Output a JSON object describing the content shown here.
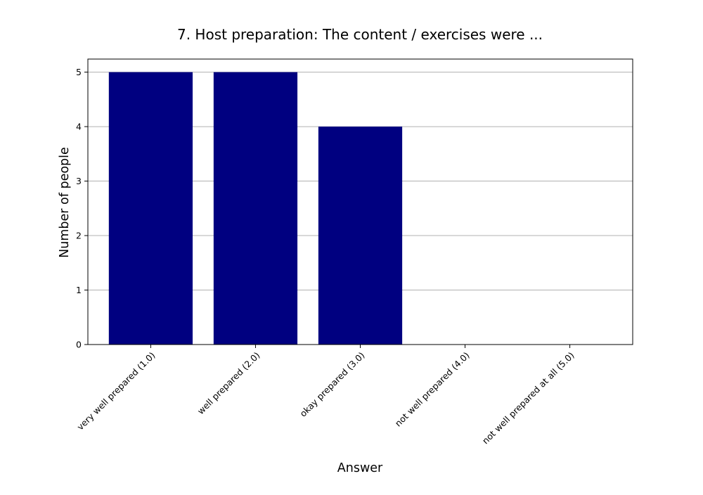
{
  "chart_data": {
    "type": "bar",
    "title": "7. Host preparation: The content / exercises were ...",
    "xlabel": "Answer",
    "ylabel": "Number of people",
    "categories": [
      "very well prepared (1.0)",
      "well prepared (2.0)",
      "okay prepared (3.0)",
      "not well prepared (4.0)",
      "not well prepared at all (5.0)"
    ],
    "values": [
      5,
      5,
      4,
      0,
      0
    ],
    "ylim": [
      0,
      5.24
    ],
    "yticks": [
      0,
      1,
      2,
      3,
      4,
      5
    ],
    "grid": "y-axis",
    "bar_color": "#000080",
    "grid_color": "#b0b0b0"
  }
}
